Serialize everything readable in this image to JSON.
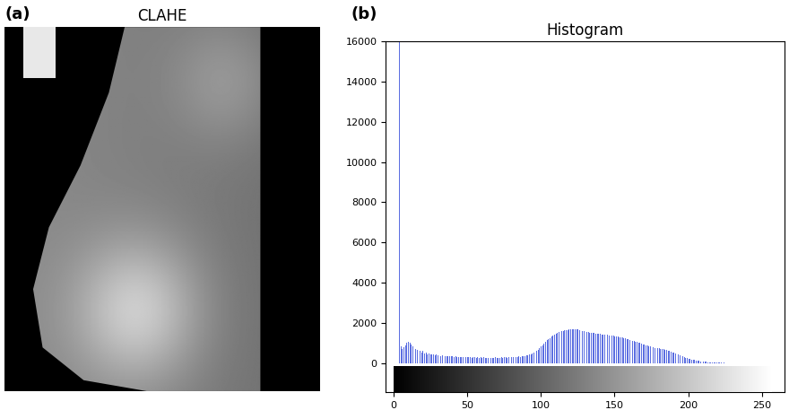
{
  "chart_data": [
    {
      "type": "image",
      "title": "CLAHE",
      "annotations": [
        "(a)"
      ],
      "tick_labels": false
    },
    {
      "type": "histogram",
      "title": "Histogram",
      "annotations": [
        "(b)"
      ],
      "color": "#5b6ee1",
      "bins": [
        0,
        1,
        2,
        3,
        4,
        5,
        6,
        7,
        8,
        9,
        10,
        11,
        12,
        13,
        14,
        15,
        16,
        17,
        18,
        19,
        20,
        21,
        22,
        23,
        24,
        25,
        26,
        27,
        28,
        29,
        30,
        31,
        32,
        33,
        34,
        35,
        36,
        37,
        38,
        39,
        40,
        41,
        42,
        43,
        44,
        45,
        46,
        47,
        48,
        49,
        50,
        51,
        52,
        53,
        54,
        55,
        56,
        57,
        58,
        59,
        60,
        61,
        62,
        63,
        64,
        65,
        66,
        67,
        68,
        69,
        70,
        71,
        72,
        73,
        74,
        75,
        76,
        77,
        78,
        79,
        80,
        81,
        82,
        83,
        84,
        85,
        86,
        87,
        88,
        89,
        90,
        91,
        92,
        93,
        94,
        95,
        96,
        97,
        98,
        99,
        100,
        101,
        102,
        103,
        104,
        105,
        106,
        107,
        108,
        109,
        110,
        111,
        112,
        113,
        114,
        115,
        116,
        117,
        118,
        119,
        120,
        121,
        122,
        123,
        124,
        125,
        126,
        127,
        128,
        129,
        130,
        131,
        132,
        133,
        134,
        135,
        136,
        137,
        138,
        139,
        140,
        141,
        142,
        143,
        144,
        145,
        146,
        147,
        148,
        149,
        150,
        151,
        152,
        153,
        154,
        155,
        156,
        157,
        158,
        159,
        160,
        161,
        162,
        163,
        164,
        165,
        166,
        167,
        168,
        169,
        170,
        171,
        172,
        173,
        174,
        175,
        176,
        177,
        178,
        179,
        180,
        181,
        182,
        183,
        184,
        185,
        186,
        187,
        188,
        189,
        190,
        191,
        192,
        193,
        194,
        195,
        196,
        197,
        198,
        199,
        200,
        201,
        202,
        203,
        204,
        205,
        206,
        207,
        208,
        209,
        210,
        211,
        212,
        213,
        214,
        215,
        216,
        217,
        218,
        219,
        220,
        221,
        222,
        223,
        224,
        225,
        226,
        227,
        228,
        229,
        230,
        231,
        232,
        233,
        234,
        235,
        236,
        237,
        238,
        239,
        240,
        241,
        242,
        243,
        244,
        245,
        246,
        247,
        248,
        249,
        250,
        251,
        252,
        253,
        254,
        255,
        256
      ],
      "counts": [
        0,
        0,
        0,
        0,
        16000,
        850,
        700,
        800,
        900,
        1000,
        1050,
        1000,
        950,
        850,
        750,
        700,
        650,
        700,
        600,
        550,
        600,
        500,
        550,
        450,
        500,
        450,
        420,
        450,
        400,
        420,
        380,
        400,
        370,
        390,
        360,
        350,
        370,
        340,
        350,
        330,
        340,
        320,
        330,
        310,
        320,
        300,
        310,
        300,
        290,
        300,
        300,
        290,
        300,
        280,
        290,
        300,
        280,
        290,
        280,
        290,
        280,
        290,
        280,
        270,
        280,
        290,
        280,
        270,
        280,
        290,
        280,
        270,
        280,
        290,
        280,
        300,
        290,
        280,
        300,
        290,
        300,
        310,
        300,
        320,
        310,
        330,
        320,
        340,
        350,
        360,
        380,
        400,
        420,
        450,
        480,
        520,
        560,
        620,
        680,
        750,
        820,
        900,
        980,
        1060,
        1140,
        1200,
        1260,
        1320,
        1380,
        1430,
        1480,
        1520,
        1550,
        1580,
        1600,
        1620,
        1640,
        1650,
        1660,
        1670,
        1680,
        1690,
        1700,
        1680,
        1700,
        1690,
        1650,
        1620,
        1600,
        1580,
        1560,
        1550,
        1540,
        1520,
        1510,
        1500,
        1490,
        1480,
        1470,
        1460,
        1450,
        1440,
        1430,
        1420,
        1410,
        1400,
        1390,
        1380,
        1370,
        1360,
        1350,
        1340,
        1320,
        1300,
        1290,
        1270,
        1250,
        1230,
        1210,
        1190,
        1170,
        1150,
        1120,
        1100,
        1070,
        1050,
        1020,
        1000,
        970,
        950,
        920,
        900,
        870,
        850,
        830,
        810,
        790,
        770,
        750,
        740,
        730,
        720,
        700,
        690,
        670,
        650,
        620,
        600,
        570,
        540,
        510,
        480,
        450,
        420,
        390,
        360,
        330,
        300,
        270,
        240,
        220,
        200,
        180,
        160,
        150,
        140,
        120,
        110,
        100,
        90,
        80,
        70,
        60,
        55,
        50,
        45,
        40,
        35,
        30,
        28,
        25,
        22,
        20,
        18,
        16,
        14,
        12,
        10,
        9,
        8,
        7,
        6,
        5,
        4,
        4,
        3,
        3,
        2,
        2,
        1,
        1,
        1,
        0,
        0,
        0,
        0,
        0,
        0,
        0,
        0,
        0,
        0,
        0,
        0,
        0,
        0
      ],
      "xlim": [
        -5,
        265
      ],
      "xticks": [
        0,
        50,
        100,
        150,
        200,
        250
      ],
      "ylim": [
        -1430,
        16000
      ],
      "yticks": [
        0,
        2000,
        4000,
        6000,
        8000,
        10000,
        12000,
        14000,
        16000
      ]
    }
  ]
}
